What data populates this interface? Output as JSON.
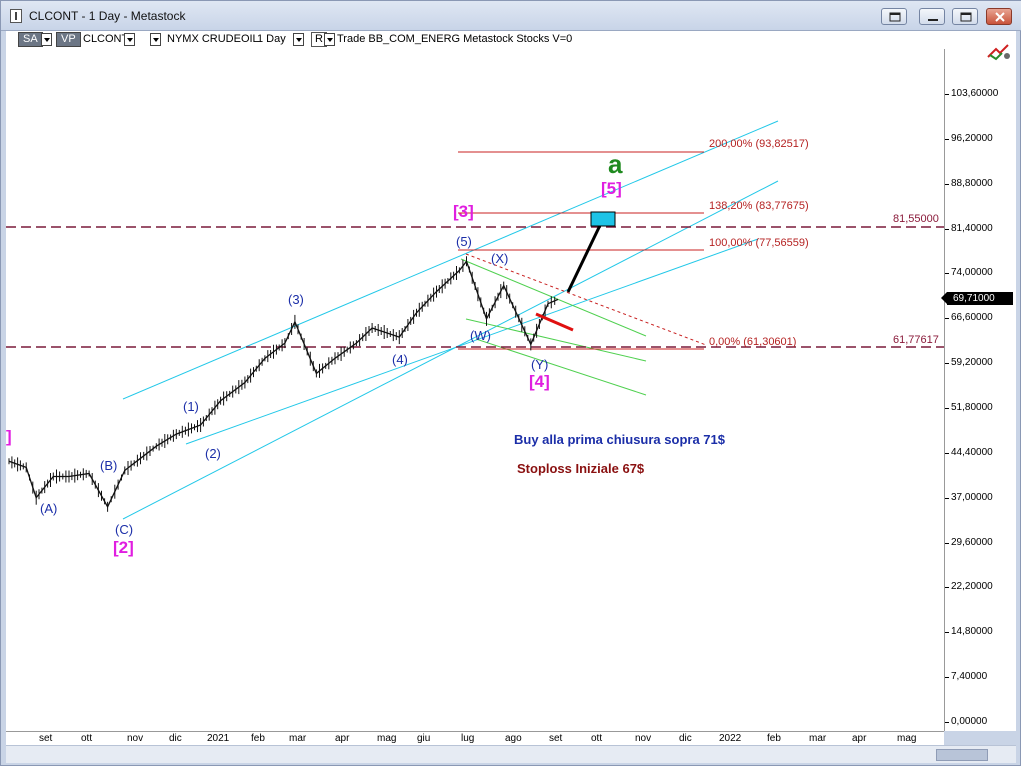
{
  "window": {
    "title": "CLCONT - 1 Day - Metastock"
  },
  "toolbar": {
    "sa": "SA",
    "vp": "VP",
    "symbol": "CLCONT",
    "exchange": "NYMX CRUDEOIL",
    "period": "1 Day",
    "r": "R",
    "rest": "Trade  BB_COM_ENERG  Metastock  Stocks  V=0"
  },
  "price_axis": {
    "ticks": [
      "103,60000",
      "96,20000",
      "88,80000",
      "81,40000",
      "74,00000",
      "66,60000",
      "59,20000",
      "51,80000",
      "44,40000",
      "37,00000",
      "29,60000",
      "22,20000",
      "14,80000",
      "7,40000",
      "0,00000"
    ],
    "last_price": "69,71000"
  },
  "date_axis": {
    "ticks": [
      "set",
      "ott",
      "nov",
      "dic",
      "2021",
      "feb",
      "mar",
      "apr",
      "mag",
      "giu",
      "lug",
      "ago",
      "set",
      "ott",
      "nov",
      "dic",
      "2022",
      "feb",
      "mar",
      "apr",
      "mag"
    ]
  },
  "fib_levels": {
    "l200": "200,00% (93,82517)",
    "l138": "138,20% (83,77675)",
    "l100": "100,00% (77,56559)",
    "l0": "0,00% (61,30601)"
  },
  "horizontal_lines": {
    "top": "81,55000",
    "bottom": "61,77617"
  },
  "waves": {
    "A": "(A)",
    "B": "(B)",
    "C": "(C)",
    "two": "[2]",
    "w1": "(1)",
    "w2": "(2)",
    "w3": "(3)",
    "w4": "(4)",
    "w5": "(5)",
    "three": "[3]",
    "X": "(X)",
    "W": "(W)",
    "Y": "(Y)",
    "four": "[4]",
    "five": "[5]",
    "a": "a",
    "bracket": "]"
  },
  "notes": {
    "buy": "Buy alla prima chiusura sopra 71$",
    "stop": "Stoploss Iniziale 67$"
  },
  "colors": {
    "channel": "#22c8e8",
    "fib": "#c82020",
    "dashed": "#7a1a3a",
    "green_channel": "#4fd04f",
    "target_box": "#1ec3e6",
    "buy_note": "#1b2ea8",
    "stop_note": "#8a1010"
  },
  "chart_data": {
    "type": "line",
    "series_note": "daily price path of CLCONT (approx.)",
    "x": [
      "2020-08-20",
      "2020-09-01",
      "2020-09-08",
      "2020-09-20",
      "2020-10-01",
      "2020-10-15",
      "2020-10-28",
      "2020-11-02",
      "2020-11-09",
      "2020-11-20",
      "2020-12-01",
      "2020-12-15",
      "2021-01-01",
      "2021-01-15",
      "2021-02-01",
      "2021-02-15",
      "2021-03-01",
      "2021-03-08",
      "2021-03-23",
      "2021-04-05",
      "2021-04-20",
      "2021-05-01",
      "2021-05-20",
      "2021-06-01",
      "2021-06-15",
      "2021-07-01",
      "2021-07-06",
      "2021-07-20",
      "2021-08-01",
      "2021-08-20",
      "2021-09-01",
      "2021-09-08"
    ],
    "values": [
      43.0,
      42.0,
      37.0,
      40.5,
      40.5,
      41.0,
      35.5,
      38.0,
      41.5,
      43.5,
      45.5,
      47.5,
      49.0,
      53.0,
      56.0,
      60.0,
      62.5,
      66.0,
      57.5,
      60.0,
      62.5,
      65.0,
      63.5,
      67.5,
      71.0,
      74.5,
      76.0,
      66.5,
      72.0,
      62.3,
      69.0,
      69.71
    ],
    "ylim": [
      0,
      103.6
    ]
  }
}
